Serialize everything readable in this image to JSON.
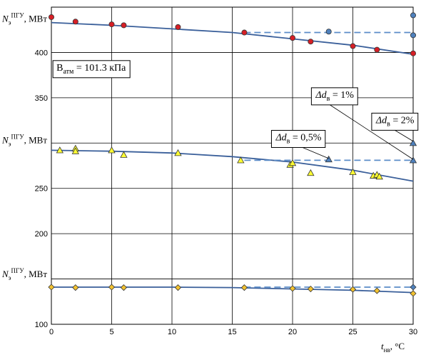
{
  "chart_data": {
    "type": "scatter",
    "xlim": [
      0,
      30
    ],
    "ylim": [
      100,
      450
    ],
    "x_ticks": [
      0,
      5,
      10,
      15,
      20,
      25,
      30
    ],
    "y_ticks": [
      100,
      150,
      200,
      250,
      300,
      350,
      400
    ],
    "grid": true,
    "xlabel": {
      "main": "t",
      "sub": "нв",
      "unit": ", °C"
    },
    "ylabels": [
      {
        "main": "N",
        "sub": "э",
        "sup": "ПГУ",
        "unit": ", МВт",
        "y": 437
      },
      {
        "main": "N",
        "sub": "э",
        "sup": "ПГУ",
        "unit": ", МВт",
        "y": 303
      },
      {
        "main": "N",
        "sub": "э",
        "sup": "ПГУ",
        "unit": ", МВт",
        "y": 155
      }
    ],
    "colors": {
      "curve": "#3a5f9a",
      "dashed": "#5b8cc8",
      "red_point": "#d61f26",
      "blue_point": "#4f81bd",
      "yellow_point": "#ffff33",
      "orange_point": "#f2c230"
    },
    "groups": [
      {
        "fit_curve": [
          [
            0,
            433
          ],
          [
            5,
            430
          ],
          [
            10,
            426
          ],
          [
            15,
            422
          ],
          [
            20,
            415
          ],
          [
            25,
            408
          ],
          [
            30,
            398
          ]
        ],
        "dashed_line": [
          [
            16,
            422
          ],
          [
            30,
            422
          ]
        ],
        "points": [
          [
            0,
            439
          ],
          [
            2,
            434
          ],
          [
            5,
            431
          ],
          [
            6,
            430
          ],
          [
            10.5,
            428
          ],
          [
            16,
            422
          ],
          [
            20,
            416
          ],
          [
            21.5,
            412
          ],
          [
            25,
            407
          ],
          [
            27,
            403
          ],
          [
            30,
            399
          ]
        ],
        "marker": "circle",
        "color": "red_point",
        "extra_points": [
          [
            23,
            423
          ],
          [
            30,
            419
          ],
          [
            30,
            441
          ]
        ],
        "extra_color": "blue_point"
      },
      {
        "fit_curve": [
          [
            0,
            292
          ],
          [
            5,
            291
          ],
          [
            10,
            289
          ],
          [
            15,
            285
          ],
          [
            20,
            279
          ],
          [
            25,
            270
          ],
          [
            30,
            258
          ]
        ],
        "dashed_line": [
          [
            16,
            281
          ],
          [
            30,
            281
          ]
        ],
        "points": [
          [
            0.7,
            292
          ],
          [
            2,
            294
          ],
          [
            2,
            291
          ],
          [
            5,
            292
          ],
          [
            6,
            287
          ],
          [
            10.5,
            289
          ],
          [
            15.7,
            281
          ],
          [
            19.8,
            276
          ],
          [
            20,
            278
          ],
          [
            21.5,
            267
          ],
          [
            25,
            268
          ],
          [
            26.7,
            264
          ],
          [
            27,
            265
          ],
          [
            27.2,
            263
          ]
        ],
        "marker": "triangle",
        "color": "yellow_point",
        "extra_points": [
          [
            23,
            282
          ],
          [
            30,
            281
          ],
          [
            30,
            300
          ]
        ],
        "extra_color": "blue_point"
      },
      {
        "fit_curve": [
          [
            0,
            141
          ],
          [
            10,
            141
          ],
          [
            15,
            140.5
          ],
          [
            20,
            139
          ],
          [
            25,
            137.5
          ],
          [
            30,
            135
          ]
        ],
        "dashed_line": [
          [
            16,
            141
          ],
          [
            30,
            141
          ]
        ],
        "points": [
          [
            0,
            141
          ],
          [
            2,
            140.5
          ],
          [
            5,
            141
          ],
          [
            6,
            140.5
          ],
          [
            10.5,
            140.5
          ],
          [
            16,
            140.5
          ],
          [
            20,
            139.5
          ],
          [
            21.5,
            139
          ],
          [
            25,
            138.5
          ],
          [
            27,
            137
          ],
          [
            30,
            134
          ]
        ],
        "marker": "diamond",
        "color": "orange_point",
        "extra_points": [
          [
            30,
            141
          ]
        ],
        "extra_color": "blue_point"
      }
    ],
    "annotations": [
      {
        "text": "B",
        "sub": "атм",
        "rest": " = 101.3 кПа",
        "at": [
          3.3,
          380
        ]
      },
      {
        "text": "Δd",
        "sub": "в",
        "rest": " = 1%",
        "at": [
          23.5,
          350
        ],
        "arrow_from": [
          23.0,
          343
        ],
        "arrow_to": [
          30,
          282
        ]
      },
      {
        "text": "Δd",
        "sub": "в",
        "rest": " = 2%",
        "at": [
          28.5,
          322
        ],
        "arrow_from": [
          28.5,
          314
        ],
        "arrow_to": [
          30,
          302
        ]
      },
      {
        "text": "Δd",
        "sub": "в",
        "rest": " = 0,5%",
        "at": [
          20.5,
          303
        ],
        "arrow_from": [
          20.5,
          297
        ],
        "arrow_to": [
          23,
          283
        ]
      }
    ]
  }
}
